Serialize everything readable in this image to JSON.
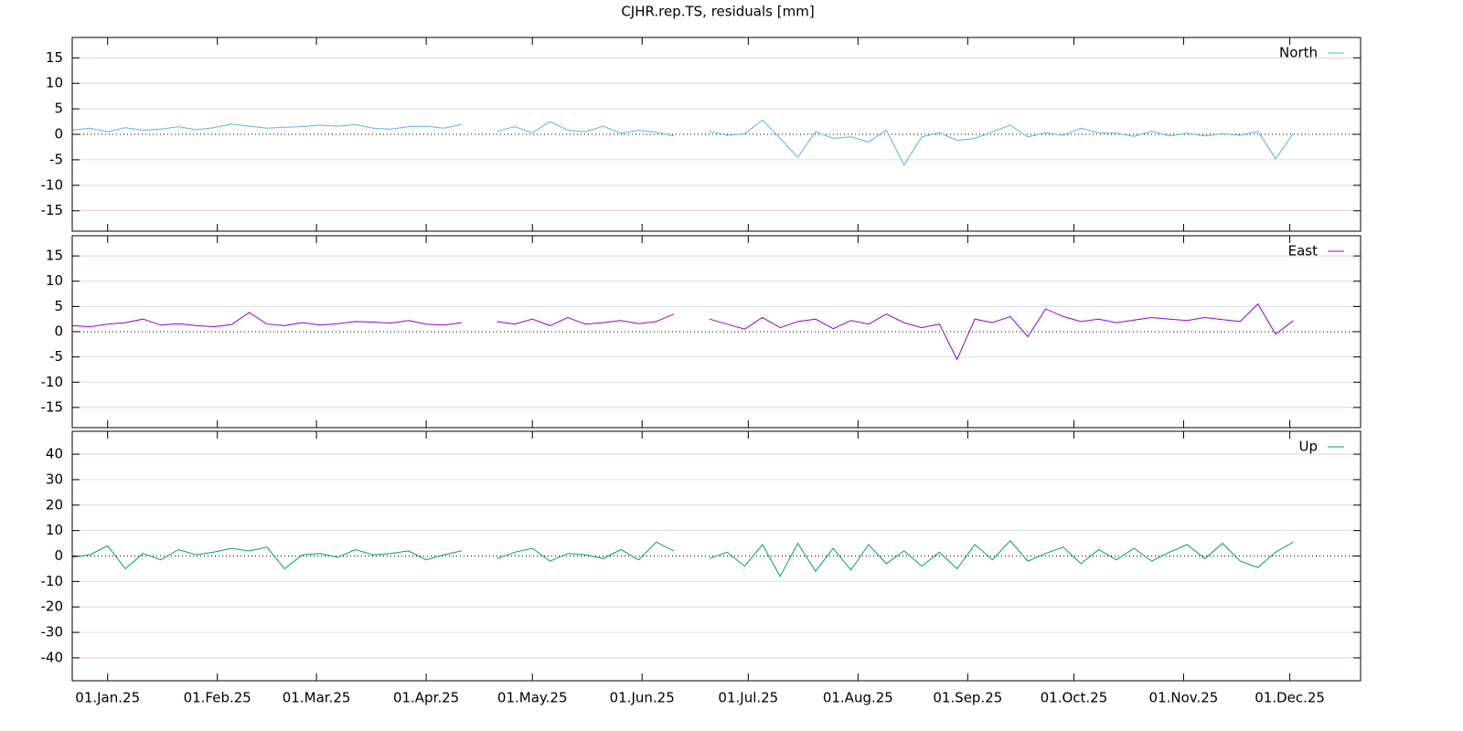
{
  "chart_data": {
    "type": "line",
    "title": "CJHR.rep.TS, residuals [mm]",
    "x": [
      "2024-12-22",
      "2024-12-27",
      "2025-01-01",
      "2025-01-06",
      "2025-01-11",
      "2025-01-16",
      "2025-01-21",
      "2025-01-26",
      "2025-01-31",
      "2025-02-05",
      "2025-02-10",
      "2025-02-15",
      "2025-02-20",
      "2025-02-25",
      "2025-03-02",
      "2025-03-07",
      "2025-03-12",
      "2025-03-17",
      "2025-03-22",
      "2025-03-27",
      "2025-04-01",
      "2025-04-06",
      "2025-04-11",
      "2025-04-16",
      "2025-04-21",
      "2025-04-26",
      "2025-05-01",
      "2025-05-06",
      "2025-05-11",
      "2025-05-16",
      "2025-05-21",
      "2025-05-26",
      "2025-05-31",
      "2025-06-05",
      "2025-06-10",
      "2025-06-15",
      "2025-06-20",
      "2025-06-25",
      "2025-06-30",
      "2025-07-05",
      "2025-07-10",
      "2025-07-15",
      "2025-07-20",
      "2025-07-25",
      "2025-07-30",
      "2025-08-04",
      "2025-08-09",
      "2025-08-14",
      "2025-08-19",
      "2025-08-24",
      "2025-08-29",
      "2025-09-03",
      "2025-09-08",
      "2025-09-13",
      "2025-09-18",
      "2025-09-23",
      "2025-09-28",
      "2025-10-03",
      "2025-10-08",
      "2025-10-13",
      "2025-10-18",
      "2025-10-23",
      "2025-10-28",
      "2025-11-02",
      "2025-11-07",
      "2025-11-12",
      "2025-11-17",
      "2025-11-22",
      "2025-11-27",
      "2025-12-02"
    ],
    "xlim": [
      "2024-12-22",
      "2025-12-21"
    ],
    "xticks": [
      {
        "value": "2025-01-01",
        "label": "01.Jan.25"
      },
      {
        "value": "2025-02-01",
        "label": "01.Feb.25"
      },
      {
        "value": "2025-03-01",
        "label": "01.Mar.25"
      },
      {
        "value": "2025-04-01",
        "label": "01.Apr.25"
      },
      {
        "value": "2025-05-01",
        "label": "01.May.25"
      },
      {
        "value": "2025-06-01",
        "label": "01.Jun.25"
      },
      {
        "value": "2025-07-01",
        "label": "01.Jul.25"
      },
      {
        "value": "2025-08-01",
        "label": "01.Aug.25"
      },
      {
        "value": "2025-09-01",
        "label": "01.Sep.25"
      },
      {
        "value": "2025-10-01",
        "label": "01.Oct.25"
      },
      {
        "value": "2025-11-01",
        "label": "01.Nov.25"
      },
      {
        "value": "2025-12-01",
        "label": "01.Dec.25"
      }
    ],
    "series": [
      {
        "name": "North",
        "color": "#56b4e9",
        "ylim": [
          -19,
          19
        ],
        "yticks": [
          -15,
          -10,
          -5,
          0,
          5,
          10,
          15
        ],
        "values": [
          0.8,
          1.2,
          0.5,
          1.3,
          0.8,
          1.0,
          1.5,
          0.9,
          1.3,
          2.0,
          1.6,
          1.2,
          1.4,
          1.5,
          1.8,
          1.6,
          1.9,
          1.2,
          1.0,
          1.5,
          1.6,
          1.2,
          1.9,
          null,
          0.6,
          1.5,
          0.3,
          2.5,
          0.8,
          0.5,
          1.6,
          0.2,
          0.8,
          0.4,
          -0.3,
          null,
          0.6,
          -0.2,
          0.1,
          2.8,
          -0.8,
          -4.5,
          0.5,
          -0.8,
          -0.5,
          -1.5,
          0.8,
          -6.0,
          -0.5,
          0.3,
          -1.2,
          -0.8,
          0.5,
          1.8,
          -0.5,
          0.3,
          -0.2,
          1.2,
          0.3,
          0.2,
          -0.4,
          0.6,
          -0.3,
          0.2,
          -0.3,
          0.1,
          -0.2,
          0.6,
          -4.8,
          0.2
        ]
      },
      {
        "name": "East",
        "color": "#9400d3",
        "ylim": [
          -19,
          19
        ],
        "yticks": [
          -15,
          -10,
          -5,
          0,
          5,
          10,
          15
        ],
        "values": [
          1.2,
          1.0,
          1.5,
          1.8,
          2.5,
          1.3,
          1.6,
          1.2,
          1.0,
          1.4,
          3.8,
          1.5,
          1.2,
          1.8,
          1.3,
          1.6,
          2.0,
          1.9,
          1.7,
          2.2,
          1.5,
          1.3,
          1.8,
          null,
          2.0,
          1.5,
          2.5,
          1.2,
          2.8,
          1.5,
          1.8,
          2.2,
          1.6,
          2.0,
          3.5,
          null,
          2.5,
          1.5,
          0.5,
          2.8,
          0.8,
          2.0,
          2.5,
          0.6,
          2.2,
          1.5,
          3.5,
          1.8,
          0.8,
          1.5,
          -5.5,
          2.5,
          1.8,
          3.0,
          -1.0,
          4.5,
          3.0,
          2.0,
          2.5,
          1.8,
          2.3,
          2.8,
          2.5,
          2.2,
          2.8,
          2.4,
          2.0,
          5.5,
          -0.5,
          2.2
        ]
      },
      {
        "name": "Up",
        "color": "#009e73",
        "ylim": [
          -49,
          49
        ],
        "yticks": [
          -40,
          -30,
          -20,
          -10,
          0,
          10,
          20,
          30,
          40
        ],
        "values": [
          -0.5,
          0.5,
          4.0,
          -5.0,
          1.0,
          -1.5,
          2.5,
          0.5,
          1.5,
          3.0,
          2.0,
          3.5,
          -5.0,
          0.5,
          1.0,
          -0.5,
          2.5,
          0.5,
          1.0,
          2.0,
          -1.5,
          0.5,
          2.0,
          null,
          -1.0,
          1.5,
          3.0,
          -2.0,
          1.0,
          0.5,
          -1.0,
          2.5,
          -1.5,
          5.5,
          2.0,
          null,
          -1.0,
          1.5,
          -4.0,
          4.5,
          -8.0,
          5.0,
          -6.0,
          3.0,
          -5.5,
          4.5,
          -3.0,
          2.0,
          -4.0,
          1.5,
          -5.0,
          4.5,
          -1.5,
          6.0,
          -2.0,
          1.0,
          3.5,
          -3.0,
          2.5,
          -1.5,
          3.0,
          -2.0,
          1.5,
          4.5,
          -1.0,
          5.0,
          -2.0,
          -4.5,
          1.5,
          5.5
        ]
      }
    ]
  }
}
